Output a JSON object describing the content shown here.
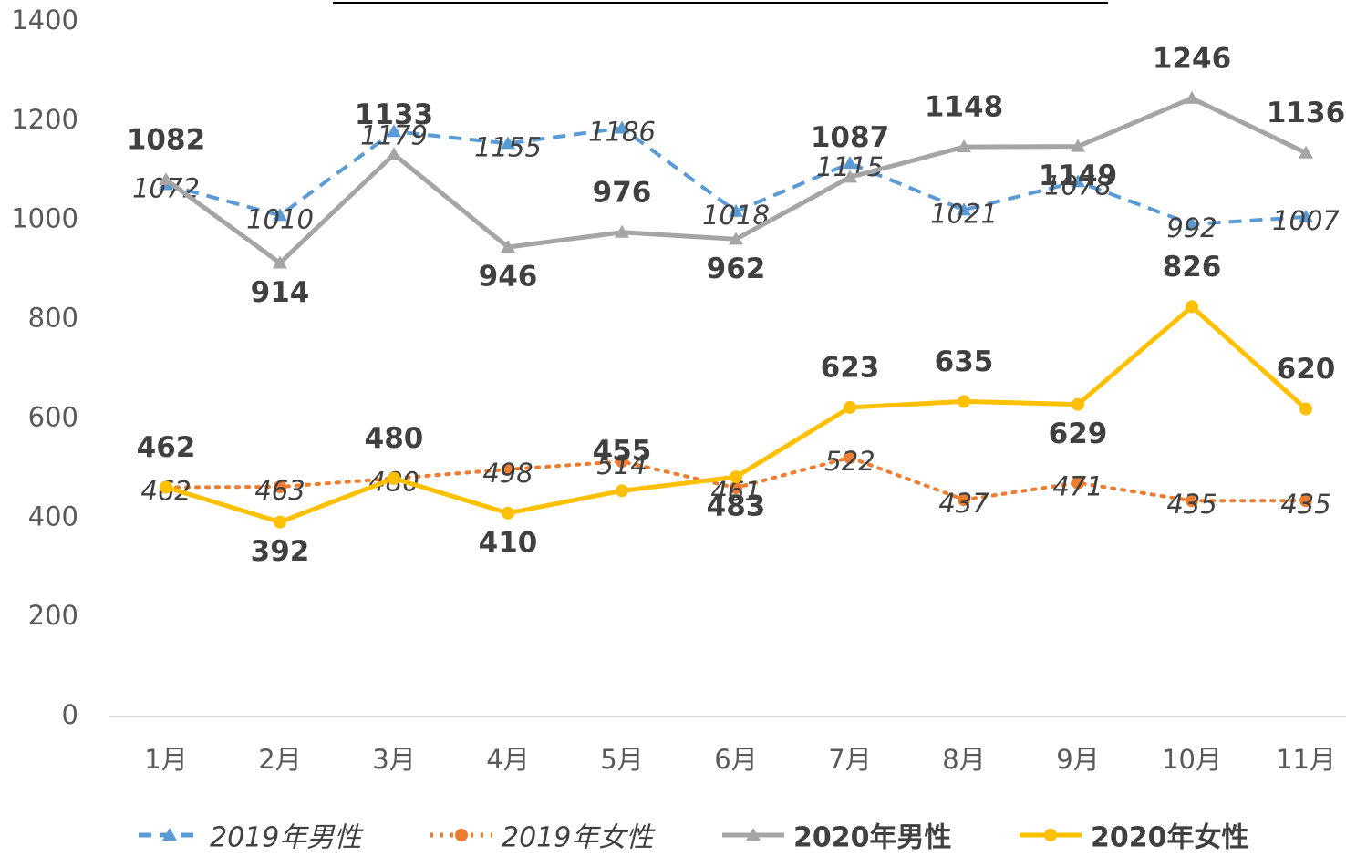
{
  "chart_data": {
    "type": "line",
    "categories": [
      "1月",
      "2月",
      "3月",
      "4月",
      "5月",
      "6月",
      "7月",
      "8月",
      "9月",
      "10月",
      "11月"
    ],
    "series": [
      {
        "name": "2019年男性",
        "color": "#5b9bd5",
        "dash": "dashed",
        "marker": "triangle",
        "values": [
          1072,
          1010,
          1179,
          1155,
          1186,
          1018,
          1115,
          1021,
          1078,
          992,
          1007
        ]
      },
      {
        "name": "2019年女性",
        "color": "#ed7d31",
        "dash": "dotted",
        "marker": "circle",
        "values": [
          462,
          463,
          480,
          498,
          514,
          461,
          522,
          437,
          471,
          435,
          435
        ]
      },
      {
        "name": "2020年男性",
        "color": "#a5a5a5",
        "dash": "solid",
        "marker": "triangle",
        "values": [
          1082,
          914,
          1133,
          946,
          976,
          962,
          1087,
          1148,
          1149,
          1246,
          1136
        ]
      },
      {
        "name": "2020年女性",
        "color": "#ffc000",
        "dash": "solid",
        "marker": "circle",
        "values": [
          462,
          392,
          480,
          410,
          455,
          483,
          623,
          635,
          629,
          826,
          620
        ]
      }
    ],
    "ylim": [
      0,
      1400
    ],
    "yticks": [
      0,
      200,
      400,
      600,
      800,
      1000,
      1200,
      1400
    ],
    "grid": false,
    "legend": "bottom"
  }
}
